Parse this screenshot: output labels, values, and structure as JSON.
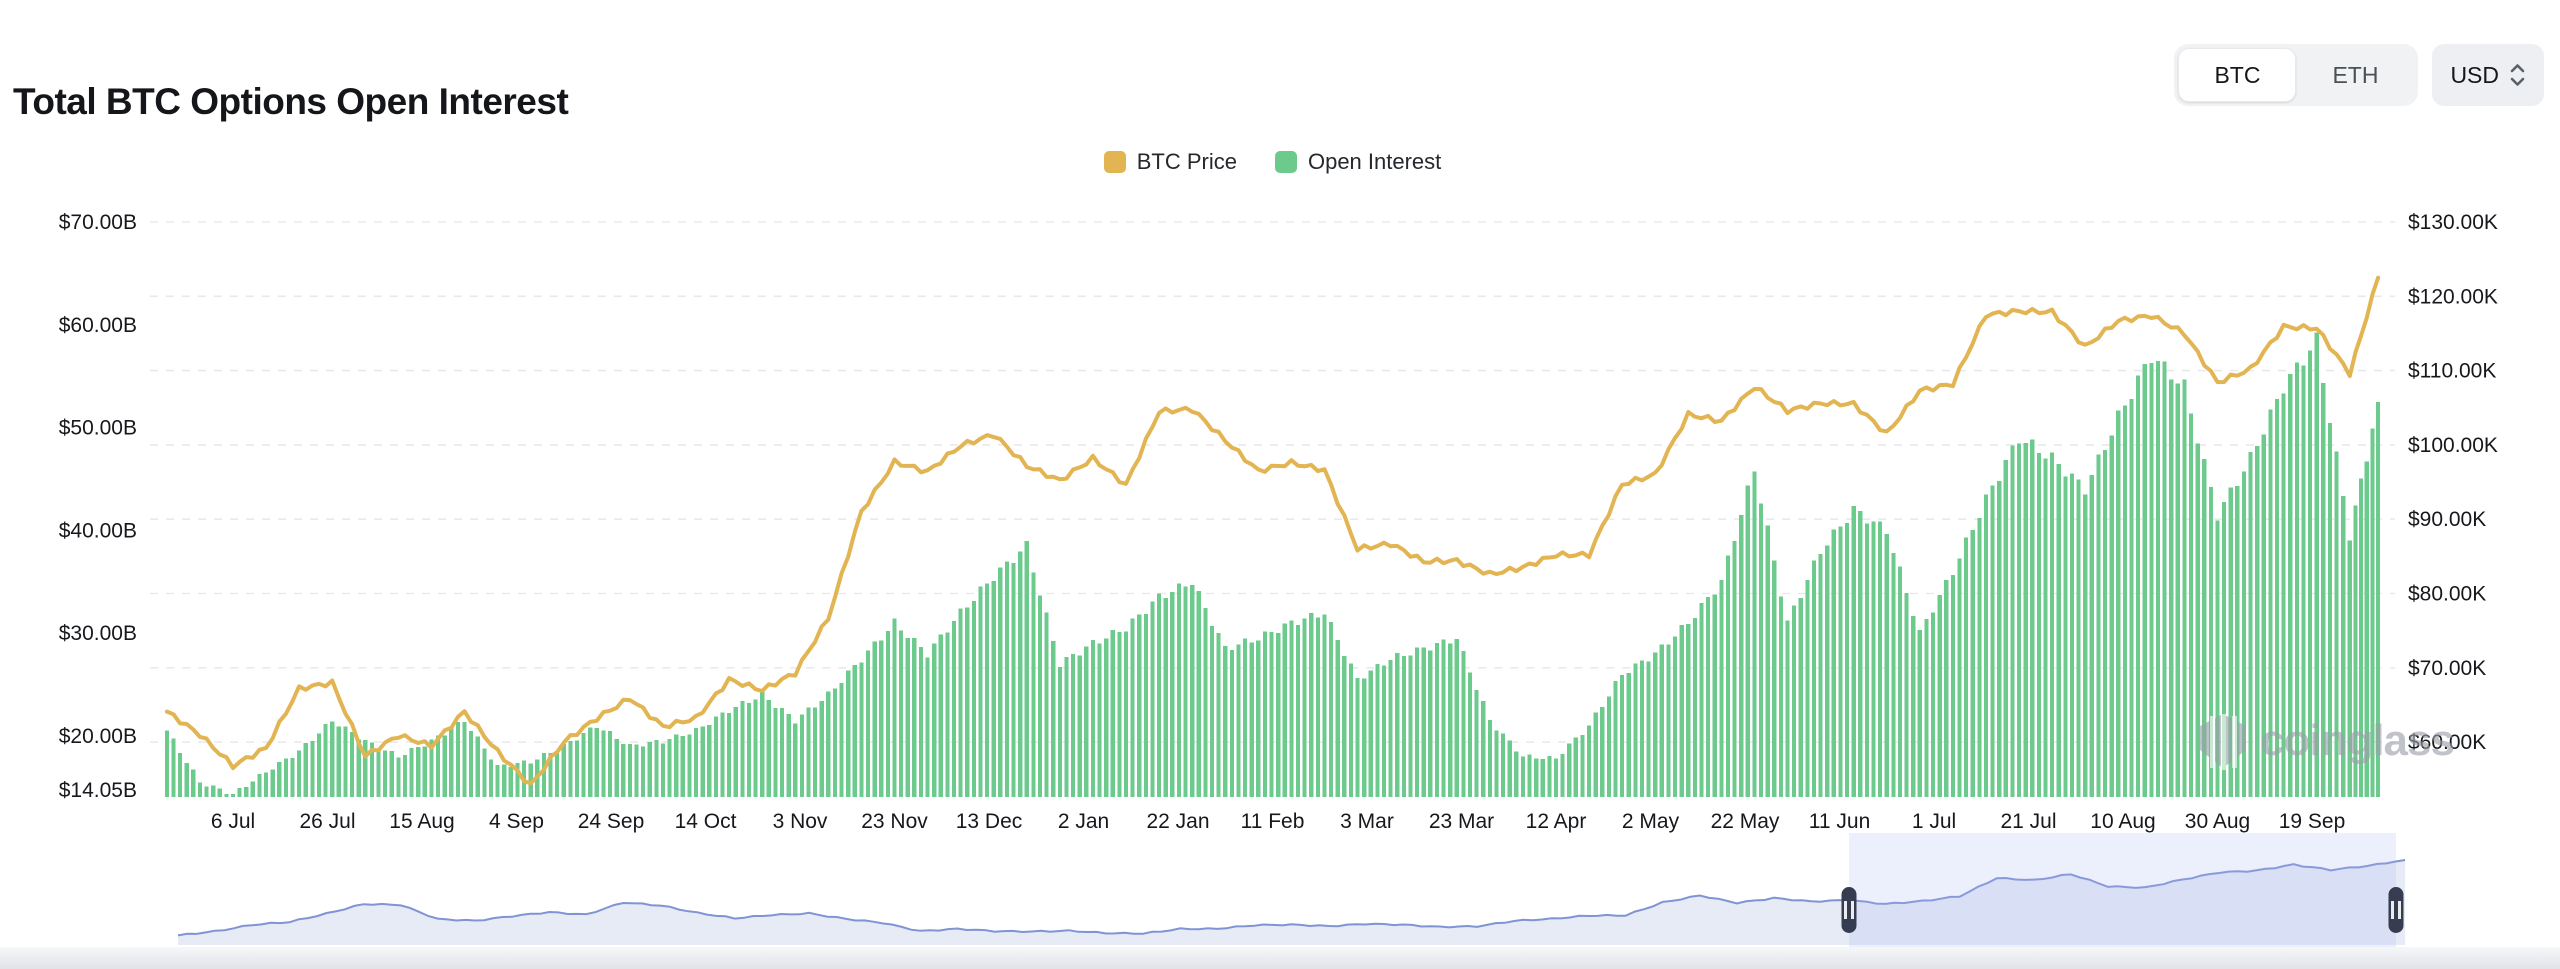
{
  "header": {
    "title": "Total BTC Options Open Interest"
  },
  "controls": {
    "coin_toggle": {
      "options": [
        {
          "label": "BTC",
          "selected": true
        },
        {
          "label": "ETH",
          "selected": false
        }
      ]
    },
    "currency_select": {
      "value": "USD",
      "icon": "sort-chevrons-icon"
    }
  },
  "legend": {
    "items": [
      {
        "label": "BTC Price",
        "color": "#E2B452",
        "series": "line"
      },
      {
        "label": "Open Interest",
        "color": "#6CCA8C",
        "series": "bar"
      }
    ]
  },
  "watermark": {
    "text": "coinglass",
    "icon": "coinglass-logo-icon"
  },
  "colors": {
    "bar": "#6CCA8C",
    "line": "#E2B452",
    "grid": "#E9EAED",
    "axis_text": "#16181c",
    "navigator_line": "#8093D4",
    "navigator_fill": "#E7EBF6",
    "brush_overlay": "#AAB6F0",
    "handle": "#363D50"
  },
  "chart_data": {
    "type": "mixed",
    "title": "Total BTC Options Open Interest",
    "x_interval": "weekly samples (chart rendered as dense daily-style bars)",
    "x": [
      "2024-06-22",
      "2024-06-29",
      "2024-07-06",
      "2024-07-13",
      "2024-07-20",
      "2024-07-27",
      "2024-08-03",
      "2024-08-10",
      "2024-08-17",
      "2024-08-24",
      "2024-08-31",
      "2024-09-07",
      "2024-09-14",
      "2024-09-21",
      "2024-09-28",
      "2024-10-05",
      "2024-10-12",
      "2024-10-19",
      "2024-10-26",
      "2024-11-02",
      "2024-11-09",
      "2024-11-16",
      "2024-11-23",
      "2024-11-30",
      "2024-12-07",
      "2024-12-14",
      "2024-12-21",
      "2024-12-28",
      "2025-01-04",
      "2025-01-11",
      "2025-01-18",
      "2025-01-25",
      "2025-02-01",
      "2025-02-08",
      "2025-02-15",
      "2025-02-22",
      "2025-03-01",
      "2025-03-08",
      "2025-03-15",
      "2025-03-22",
      "2025-03-29",
      "2025-04-05",
      "2025-04-12",
      "2025-04-19",
      "2025-04-26",
      "2025-05-03",
      "2025-05-10",
      "2025-05-17",
      "2025-05-24",
      "2025-05-31",
      "2025-06-07",
      "2025-06-14",
      "2025-06-21",
      "2025-06-28",
      "2025-07-05",
      "2025-07-12",
      "2025-07-19",
      "2025-07-26",
      "2025-08-02",
      "2025-08-09",
      "2025-08-16",
      "2025-08-23",
      "2025-08-30",
      "2025-09-06",
      "2025-09-13",
      "2025-09-20",
      "2025-09-27",
      "2025-10-03"
    ],
    "series": [
      {
        "name": "Open Interest",
        "type": "bar",
        "axis": "left",
        "unit": "USD billions",
        "color": "#6CCA8C",
        "values": [
          20.5,
          15.5,
          14.3,
          16.5,
          18.5,
          21.5,
          19.5,
          18.0,
          19.5,
          21.5,
          17.0,
          17.5,
          19.0,
          21.0,
          19.0,
          19.5,
          20.5,
          22.5,
          24.0,
          21.5,
          24.0,
          27.5,
          31.0,
          28.0,
          32.0,
          35.5,
          38.5,
          27.0,
          29.0,
          30.5,
          33.5,
          35.0,
          28.5,
          29.5,
          31.0,
          32.0,
          25.5,
          27.5,
          28.5,
          29.5,
          21.5,
          18.0,
          17.8,
          21.0,
          26.0,
          28.0,
          31.0,
          35.0,
          46.0,
          31.0,
          38.0,
          42.0,
          40.0,
          30.0,
          36.0,
          43.0,
          49.0,
          47.0,
          44.0,
          51.0,
          57.0,
          54.0,
          41.5,
          47.0,
          54.0,
          58.5,
          39.5,
          52.5
        ]
      },
      {
        "name": "BTC Price",
        "type": "line",
        "axis": "right",
        "unit": "USD thousands",
        "color": "#E2B452",
        "values": [
          64.1,
          61.0,
          56.8,
          59.2,
          67.2,
          68.0,
          58.1,
          60.9,
          59.5,
          64.1,
          58.7,
          54.2,
          60.0,
          63.2,
          65.9,
          62.1,
          63.2,
          68.4,
          67.0,
          69.3,
          76.7,
          91.0,
          97.7,
          96.4,
          99.9,
          101.4,
          97.2,
          95.2,
          98.2,
          94.6,
          104.5,
          104.8,
          100.6,
          96.5,
          97.6,
          96.6,
          86.0,
          86.7,
          84.3,
          84.4,
          82.6,
          83.5,
          85.2,
          85.2,
          94.7,
          96.0,
          104.1,
          103.2,
          107.8,
          104.6,
          105.6,
          105.5,
          101.5,
          107.3,
          108.2,
          117.5,
          118.0,
          117.9,
          113.2,
          116.7,
          117.4,
          115.0,
          108.4,
          110.2,
          115.9,
          115.7,
          109.6,
          122.5
        ]
      }
    ],
    "left_axis": {
      "unit": "USD billions",
      "min": 14.05,
      "max": 70,
      "tick_labels": [
        "$70.00B",
        "$60.00B",
        "$50.00B",
        "$40.00B",
        "$30.00B",
        "$20.00B",
        "$14.05B"
      ],
      "tick_values": [
        70,
        60,
        50,
        40,
        30,
        20,
        14.05
      ]
    },
    "right_axis": {
      "unit": "USD thousands",
      "min": 60,
      "max": 130,
      "tick_labels": [
        "$130.00K",
        "$120.00K",
        "$110.00K",
        "$100.00K",
        "$90.00K",
        "$80.00K",
        "$70.00K",
        "$60.00K"
      ],
      "tick_values": [
        130,
        120,
        110,
        100,
        90,
        80,
        70,
        60
      ]
    },
    "x_tick_labels": [
      "6 Jul",
      "26 Jul",
      "15 Aug",
      "4 Sep",
      "24 Sep",
      "14 Oct",
      "3 Nov",
      "23 Nov",
      "13 Dec",
      "2 Jan",
      "22 Jan",
      "11 Feb",
      "3 Mar",
      "23 Mar",
      "12 Apr",
      "2 May",
      "22 May",
      "11 Jun",
      "1 Jul",
      "21 Jul",
      "10 Aug",
      "30 Aug",
      "19 Sep"
    ],
    "grid": {
      "horizontal_dashed": true,
      "levels_follow": "right_axis"
    },
    "legend_position": "top-center"
  },
  "navigator": {
    "chart_data": {
      "type": "area",
      "name": "BTC Price (full history)",
      "interval": "monthly",
      "x_start": "2020-10",
      "x_end": "2025-10",
      "values": [
        13.8,
        19.7,
        29.0,
        33.1,
        45.2,
        58.9,
        57.8,
        37.3,
        35.0,
        41.5,
        47.2,
        43.8,
        61.3,
        57.0,
        46.2,
        38.5,
        43.2,
        45.5,
        37.6,
        31.8,
        19.9,
        23.3,
        20.0,
        19.4,
        20.5,
        17.2,
        16.5,
        23.1,
        23.5,
        28.5,
        29.3,
        27.2,
        30.5,
        29.2,
        26.0,
        26.9,
        34.7,
        37.7,
        42.3,
        42.6,
        61.2,
        71.3,
        60.6,
        67.5,
        62.7,
        64.6,
        59.1,
        63.3,
        70.2,
        96.4,
        93.4,
        102.1,
        84.4,
        82.6,
        94.2,
        104.6,
        107.2,
        115.8,
        108.2,
        114.0,
        122.5
      ]
    },
    "brush": {
      "from": "2024-07",
      "to": "2025-10"
    }
  }
}
